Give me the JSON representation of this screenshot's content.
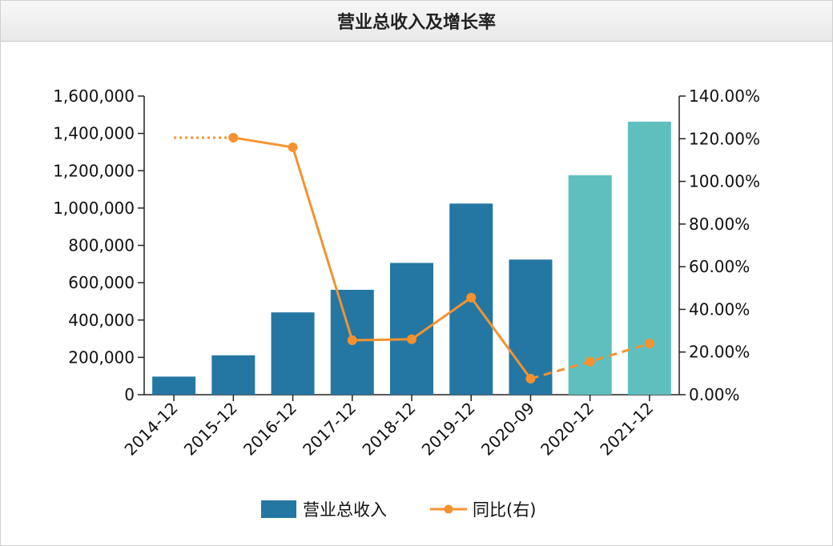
{
  "chart_data": {
    "type": "bar",
    "title": "营业总收入及增长率",
    "categories": [
      "2014-12",
      "2015-12",
      "2016-12",
      "2017-12",
      "2018-12",
      "2019-12",
      "2020-09",
      "2020-12",
      "2021-12"
    ],
    "series": [
      {
        "name": "营业总收入",
        "type": "bar",
        "axis": "left",
        "values": [
          97000,
          211000,
          441000,
          562000,
          706000,
          1024000,
          724000,
          1176000,
          1463000
        ],
        "colors": [
          "#2477a3",
          "#2477a3",
          "#2477a3",
          "#2477a3",
          "#2477a3",
          "#2477a3",
          "#2477a3",
          "#5fbfbf",
          "#5fbfbf"
        ],
        "forecast_from_index": 7
      },
      {
        "name": "同比(右)",
        "type": "line",
        "axis": "right",
        "unit": "%",
        "values": [
          null,
          120.5,
          116.0,
          25.5,
          26.0,
          45.5,
          7.5,
          15.5,
          24.0
        ],
        "color": "#f5922f",
        "lead_in_dotted_from": 120.5,
        "dashed_from_index": 6
      }
    ],
    "y_left": {
      "min": 0,
      "max": 1600000,
      "ticks": [
        "0",
        "200,000",
        "400,000",
        "600,000",
        "800,000",
        "1,000,000",
        "1,200,000",
        "1,400,000",
        "1,600,000"
      ]
    },
    "y_right": {
      "min": 0,
      "max": 140,
      "ticks": [
        "0.00%",
        "20.00%",
        "40.00%",
        "60.00%",
        "80.00%",
        "100.00%",
        "120.00%",
        "140.00%"
      ]
    },
    "grid": false,
    "legend_position": "bottom-center"
  }
}
